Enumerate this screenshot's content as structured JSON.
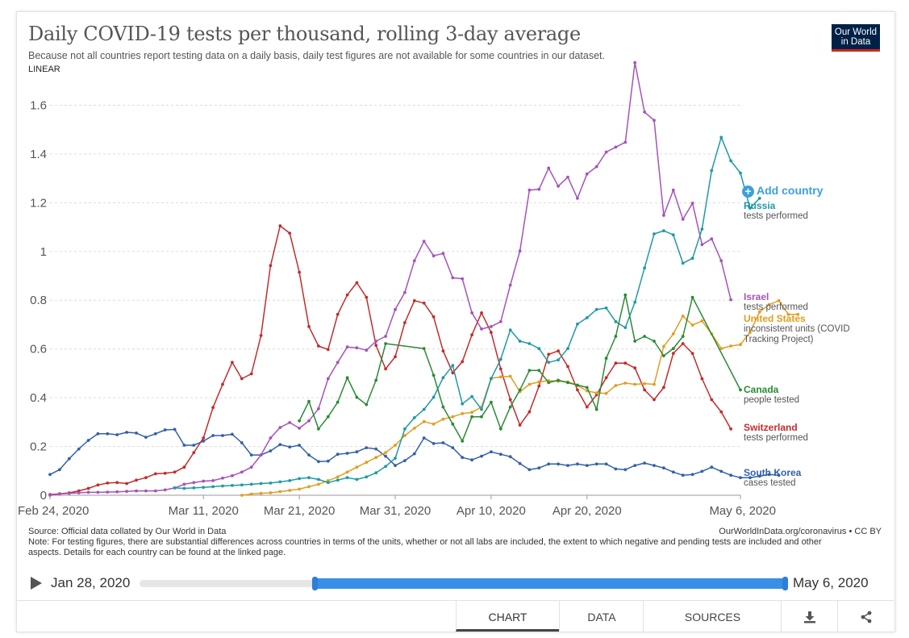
{
  "header": {
    "title": "Daily COVID-19 tests per thousand, rolling 3-day average",
    "subtitle": "Because not all countries report testing data on a daily basis, daily test figures are not available for some countries in our dataset.",
    "scale": "LINEAR",
    "logo_line1": "Our World",
    "logo_line2": "in Data"
  },
  "add_country": "Add country",
  "labels": {
    "russia": {
      "name": "Russia",
      "desc": "tests performed"
    },
    "israel": {
      "name": "Israel",
      "desc": "tests performed"
    },
    "us": {
      "name": "United States",
      "desc1": "inconsistent units (COVID",
      "desc2": "Tracking Project)"
    },
    "canada": {
      "name": "Canada",
      "desc": "people tested"
    },
    "switzerland": {
      "name": "Switzerland",
      "desc": "tests performed"
    },
    "southkorea": {
      "name": "South Korea",
      "desc": "cases tested"
    }
  },
  "footer": {
    "source": "Source: Official data collated by Our World in Data",
    "note": "Note: For testing figures, there are substantial differences across countries in terms of the units, whether or not all labs are included, the extent to which negative and pending tests are included and other aspects. Details for each country can be found at the linked page.",
    "credit": "OurWorldInData.org/coronavirus • CC BY"
  },
  "timeline": {
    "start": "Jan 28, 2020",
    "end": "May 6, 2020"
  },
  "tabs": {
    "chart": "CHART",
    "data": "DATA",
    "sources": "SOURCES"
  },
  "chart_data": {
    "type": "line",
    "title": "Daily COVID-19 tests per thousand, rolling 3-day average",
    "ylim": [
      0,
      1.8
    ],
    "yticks": [
      0,
      0.2,
      0.4,
      0.6,
      0.8,
      1,
      1.2,
      1.4,
      1.6
    ],
    "ytick_labels": [
      "0",
      "0.2",
      "0.4",
      "0.6",
      "0.8",
      "1",
      "1.2",
      "1.4",
      "1.6"
    ],
    "xticks": [
      0,
      16,
      26,
      36,
      46,
      56,
      72
    ],
    "xtick_labels": [
      "Feb 24, 2020",
      "Mar 11, 2020",
      "Mar 21, 2020",
      "Mar 31, 2020",
      "Apr 10, 2020",
      "Apr 20, 2020",
      "May 6, 2020"
    ],
    "x_start": "Feb 24, 2020",
    "grid": true,
    "legend": "right, labels at line ends",
    "series": [
      {
        "name": "South Korea",
        "color": "#3360a9",
        "start": 0,
        "values": [
          0.085,
          0.105,
          0.15,
          0.19,
          0.225,
          0.252,
          0.252,
          0.248,
          0.258,
          0.255,
          0.238,
          0.252,
          0.268,
          0.27,
          0.205,
          0.205,
          0.222,
          0.245,
          0.245,
          0.25,
          0.215,
          0.165,
          0.165,
          0.182,
          0.208,
          0.198,
          0.205,
          0.165,
          0.138,
          0.14,
          0.168,
          0.172,
          0.178,
          0.195,
          0.19,
          0.16,
          0.122,
          0.142,
          0.17,
          0.235,
          0.212,
          0.215,
          0.195,
          0.155,
          0.145,
          0.16,
          0.178,
          0.168,
          0.158,
          0.13,
          0.105,
          0.112,
          0.128,
          0.128,
          0.122,
          0.128,
          0.122,
          0.128,
          0.128,
          0.108,
          0.105,
          0.122,
          0.132,
          0.122,
          0.112,
          0.095,
          0.082,
          0.085,
          0.098,
          0.115,
          0.098,
          0.082,
          0.072,
          0.072,
          0.078,
          0.085,
          0.082
        ]
      },
      {
        "name": "Switzerland",
        "color": "#c22c2c",
        "start": 0,
        "values": [
          0.003,
          0.006,
          0.01,
          0.018,
          0.028,
          0.042,
          0.05,
          0.052,
          0.048,
          0.062,
          0.072,
          0.088,
          0.09,
          0.095,
          0.115,
          0.175,
          0.235,
          0.36,
          0.455,
          0.545,
          0.478,
          0.498,
          0.655,
          0.942,
          1.105,
          1.075,
          0.915,
          0.692,
          0.612,
          0.598,
          0.742,
          0.822,
          0.872,
          0.812,
          0.615,
          0.518,
          0.568,
          0.708,
          0.798,
          0.788,
          0.732,
          0.592,
          0.502,
          0.548,
          0.658,
          0.748,
          0.668,
          0.518,
          0.392,
          0.288,
          0.342,
          0.448,
          0.578,
          0.592,
          0.528,
          0.432,
          0.362,
          0.412,
          0.482,
          0.542,
          0.542,
          0.522,
          0.432,
          0.392,
          0.442,
          0.582,
          0.622,
          0.582,
          0.478,
          0.392,
          0.342,
          0.272
        ]
      },
      {
        "name": "Israel",
        "color": "#a652ba",
        "start": 0,
        "values": [
          0.0,
          0.005,
          0.008,
          0.01,
          0.012,
          0.012,
          0.013,
          0.014,
          0.016,
          0.018,
          0.018,
          0.018,
          0.022,
          0.03,
          0.045,
          0.052,
          0.058,
          0.06,
          0.07,
          0.08,
          0.095,
          0.115,
          0.165,
          0.235,
          0.278,
          0.298,
          0.275,
          0.305,
          0.355,
          0.478,
          0.545,
          0.608,
          0.605,
          0.595,
          0.632,
          0.652,
          0.762,
          0.832,
          0.962,
          1.042,
          0.982,
          0.992,
          0.892,
          0.888,
          0.748,
          0.682,
          0.692,
          0.712,
          0.862,
          1.002,
          1.252,
          1.255,
          1.342,
          1.268,
          1.305,
          1.218,
          1.318,
          1.348,
          1.408,
          1.428,
          1.448,
          1.775,
          1.572,
          1.538,
          1.148,
          1.252,
          1.132,
          1.198,
          1.028,
          1.052,
          0.962,
          0.802
        ]
      },
      {
        "name": "United States",
        "color": "#e19e20",
        "start": 20,
        "values": [
          0.0,
          0.005,
          0.008,
          0.01,
          0.015,
          0.02,
          0.025,
          0.035,
          0.045,
          0.06,
          0.075,
          0.095,
          0.115,
          0.135,
          0.155,
          0.175,
          0.205,
          0.245,
          0.275,
          0.302,
          0.292,
          0.312,
          0.322,
          0.335,
          0.34,
          0.362,
          0.48,
          0.485,
          0.488,
          0.425,
          0.455,
          0.465,
          0.47,
          0.468,
          0.465,
          0.45,
          0.428,
          0.42,
          0.418,
          0.45,
          0.46,
          0.455,
          0.458,
          0.455,
          0.61,
          0.662,
          0.735,
          0.698,
          0.715,
          0.662,
          0.602,
          0.612,
          0.618,
          0.668,
          0.752,
          0.782,
          0.798,
          0.742,
          0.742
        ]
      },
      {
        "name": "Russia",
        "color": "#1e9aa5",
        "start": 13,
        "values": [
          0.03,
          0.028,
          0.03,
          0.032,
          0.035,
          0.038,
          0.04,
          0.042,
          0.045,
          0.048,
          0.05,
          0.055,
          0.06,
          0.068,
          0.072,
          0.065,
          0.052,
          0.062,
          0.072,
          0.065,
          0.075,
          0.092,
          0.118,
          0.152,
          0.272,
          0.318,
          0.352,
          0.402,
          0.482,
          0.532,
          0.375,
          0.405,
          0.352,
          0.478,
          0.558,
          0.678,
          0.632,
          0.622,
          0.602,
          0.545,
          0.555,
          0.602,
          0.702,
          0.728,
          0.762,
          0.768,
          0.712,
          0.688,
          0.792,
          0.932,
          1.072,
          1.085,
          1.068,
          0.952,
          0.972,
          1.092,
          1.332,
          1.468,
          1.372,
          1.322,
          1.178,
          1.218
        ]
      },
      {
        "name": "Canada",
        "color": "#2a8a35",
        "start": 26,
        "values": [
          0.305,
          0.385,
          0.272,
          0.322,
          0.382,
          0.482,
          0.402,
          0.372,
          0.472,
          0.622,
          null,
          null,
          null,
          0.602,
          0.492,
          0.362,
          0.292,
          0.222,
          0.322,
          0.322,
          0.382,
          0.272,
          0.362,
          0.432,
          0.512,
          0.512,
          0.462,
          0.472,
          0.462,
          0.452,
          0.442,
          0.352,
          0.562,
          0.652,
          0.822,
          0.632,
          0.652,
          0.632,
          0.572,
          0.602,
          0.652,
          0.812,
          null,
          null,
          null,
          null,
          0.432
        ]
      }
    ]
  }
}
